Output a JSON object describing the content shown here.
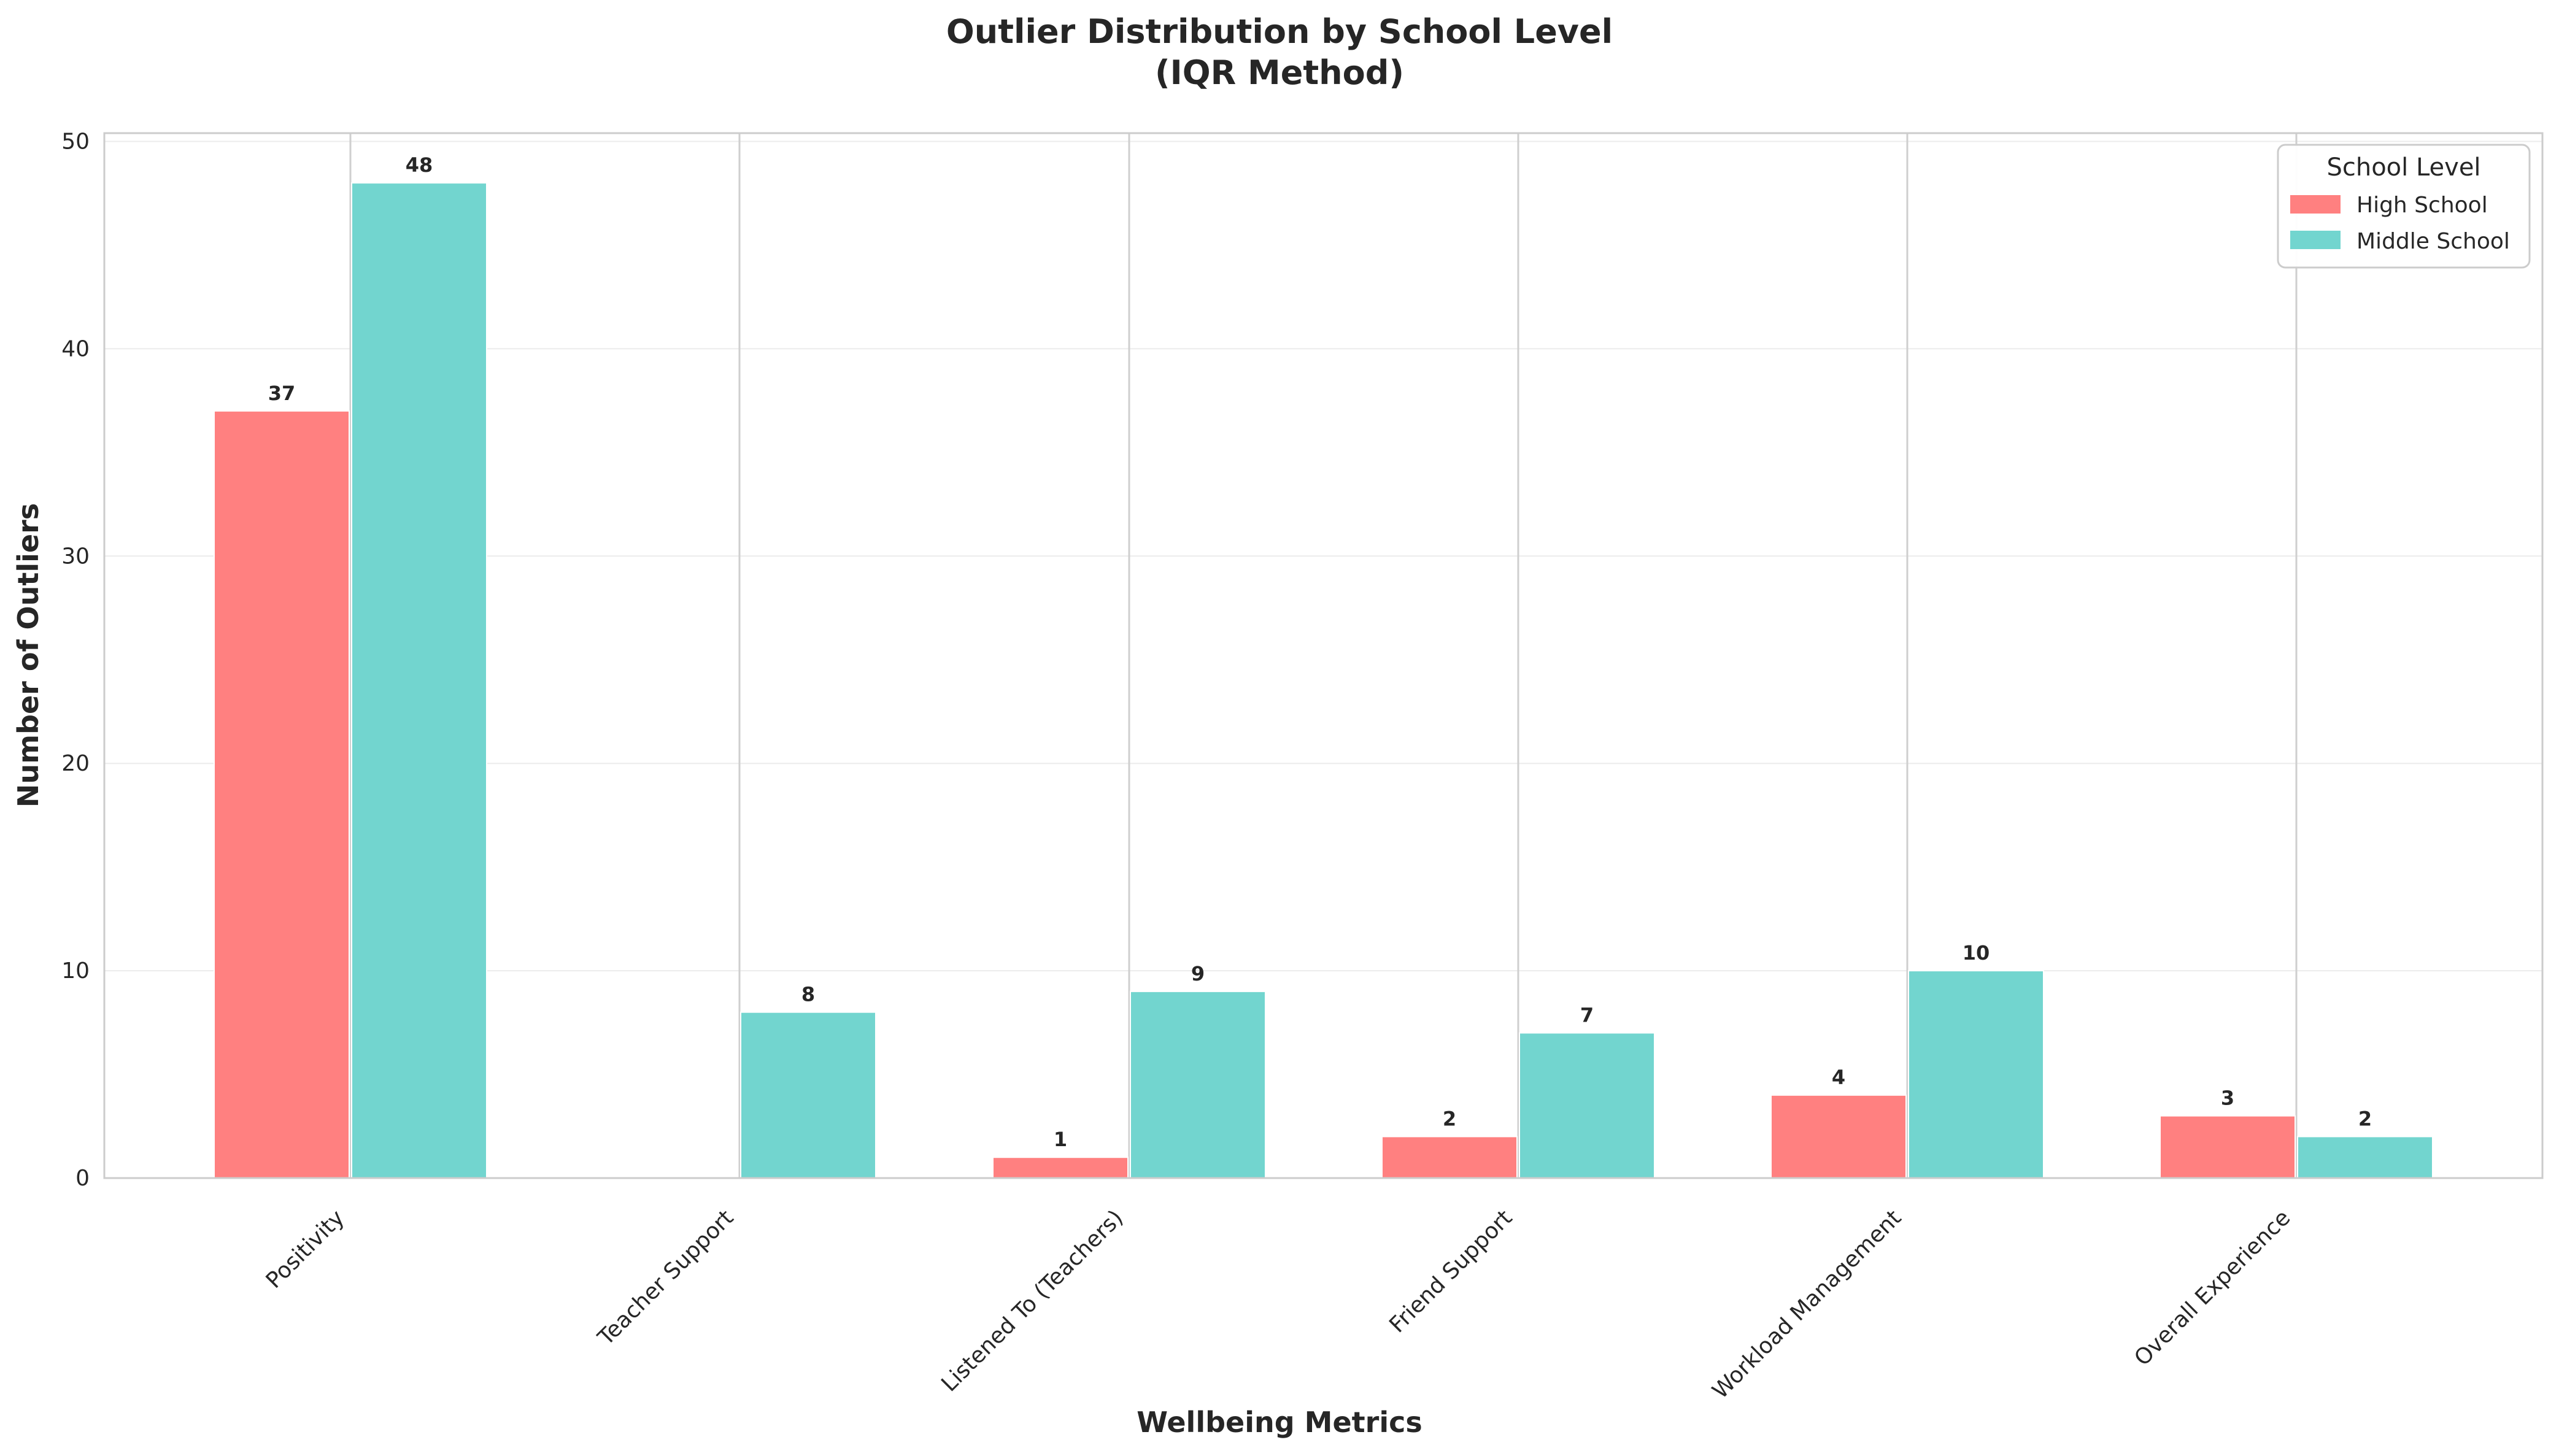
{
  "chart_data": {
    "type": "bar",
    "title_line1": "Outlier Distribution by School Level",
    "title_line2": "(IQR Method)",
    "xlabel": "Wellbeing Metrics",
    "ylabel": "Number of Outliers",
    "categories": [
      "Positivity",
      "Teacher Support",
      "Listened To (Teachers)",
      "Friend Support",
      "Workload Management",
      "Overall Experience"
    ],
    "series": [
      {
        "name": "High School",
        "color": "#ff8080",
        "values": [
          37,
          0,
          1,
          2,
          4,
          3
        ],
        "labels": [
          "37",
          "",
          "1",
          "2",
          "4",
          "3"
        ]
      },
      {
        "name": "Middle School",
        "color": "#72d5cf",
        "values": [
          48,
          8,
          9,
          7,
          10,
          2
        ],
        "labels": [
          "48",
          "8",
          "9",
          "7",
          "10",
          "2"
        ]
      }
    ],
    "ylim": [
      0,
      50.4
    ],
    "yticks": [
      0,
      10,
      20,
      30,
      40,
      50
    ],
    "ytick_labels": [
      "0",
      "10",
      "20",
      "30",
      "40",
      "50"
    ],
    "grid": true,
    "legend": {
      "title": "School Level",
      "placement": "top-right"
    }
  }
}
